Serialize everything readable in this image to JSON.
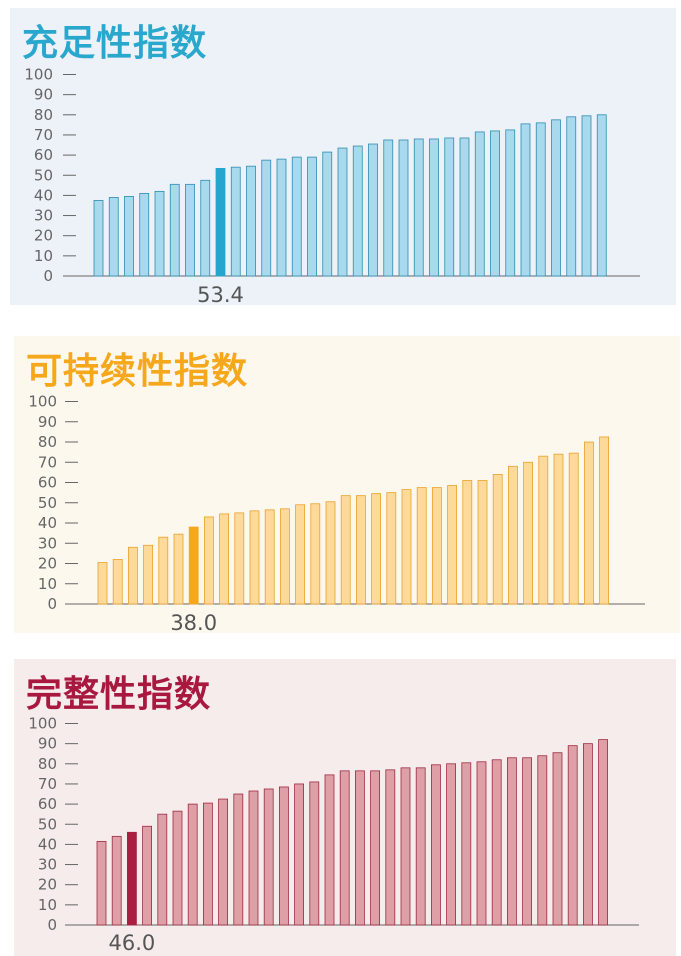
{
  "chart_data": [
    {
      "type": "bar",
      "title": "充足性指数",
      "ylim": [
        0,
        100
      ],
      "yticks": [
        "100",
        "90",
        "80",
        "70",
        "60",
        "50",
        "40",
        "30",
        "20",
        "10",
        "0"
      ],
      "highlight_index": 8,
      "highlight_label": "53.4",
      "values": [
        37.5,
        39,
        39.5,
        41,
        42,
        45.5,
        45.5,
        47.5,
        53.4,
        54,
        54.5,
        57.5,
        58,
        59,
        59,
        61.5,
        63.5,
        64.5,
        65.5,
        67.5,
        67.5,
        68,
        68,
        68.5,
        68.5,
        71.5,
        72,
        72.5,
        75.5,
        76,
        77.5,
        79,
        79.5,
        80
      ]
    },
    {
      "type": "bar",
      "title": "可持续性指数",
      "ylim": [
        0,
        100
      ],
      "yticks": [
        "100",
        "90",
        "80",
        "70",
        "60",
        "50",
        "40",
        "30",
        "20",
        "10",
        "0"
      ],
      "highlight_index": 6,
      "highlight_label": "38.0",
      "values": [
        20.5,
        22,
        28,
        29,
        33,
        34.5,
        38.0,
        43,
        44.5,
        45,
        46,
        46.5,
        47,
        49,
        49.5,
        50.5,
        53.5,
        53.5,
        54.5,
        55,
        56.5,
        57.5,
        57.5,
        58.5,
        61,
        61,
        64,
        68,
        70,
        73,
        74,
        74.5,
        80,
        82.5
      ]
    },
    {
      "type": "bar",
      "title": "完整性指数",
      "ylim": [
        0,
        100
      ],
      "yticks": [
        "100",
        "90",
        "80",
        "70",
        "60",
        "50",
        "40",
        "30",
        "20",
        "10",
        "0"
      ],
      "highlight_index": 2,
      "highlight_label": "46.0",
      "values": [
        41.5,
        44,
        46.0,
        49,
        55,
        56.5,
        60,
        60.5,
        62.5,
        65,
        66.5,
        67.5,
        68.5,
        70,
        71,
        74.5,
        76.5,
        76.5,
        76.5,
        77,
        78,
        78,
        79.5,
        80,
        80.5,
        81,
        82,
        83,
        83,
        84,
        85.5,
        89,
        90,
        92
      ]
    }
  ],
  "colors": {
    "adequacy": {
      "bg": "#edf2f9",
      "title": "#2aa7cc",
      "bar": "#a9d9ec",
      "bar_edge": "#2d8cb2",
      "highlight": "#26a6cf"
    },
    "sustainability": {
      "bg": "#fdf8ee",
      "title": "#f6a81c",
      "bar": "#fdd99a",
      "bar_edge": "#eba22a",
      "highlight": "#f6a81c"
    },
    "integrity": {
      "bg": "#f6ecec",
      "title": "#a8183f",
      "bar": "#dea0a6",
      "bar_edge": "#9c2a40",
      "highlight": "#aa1e42"
    }
  }
}
